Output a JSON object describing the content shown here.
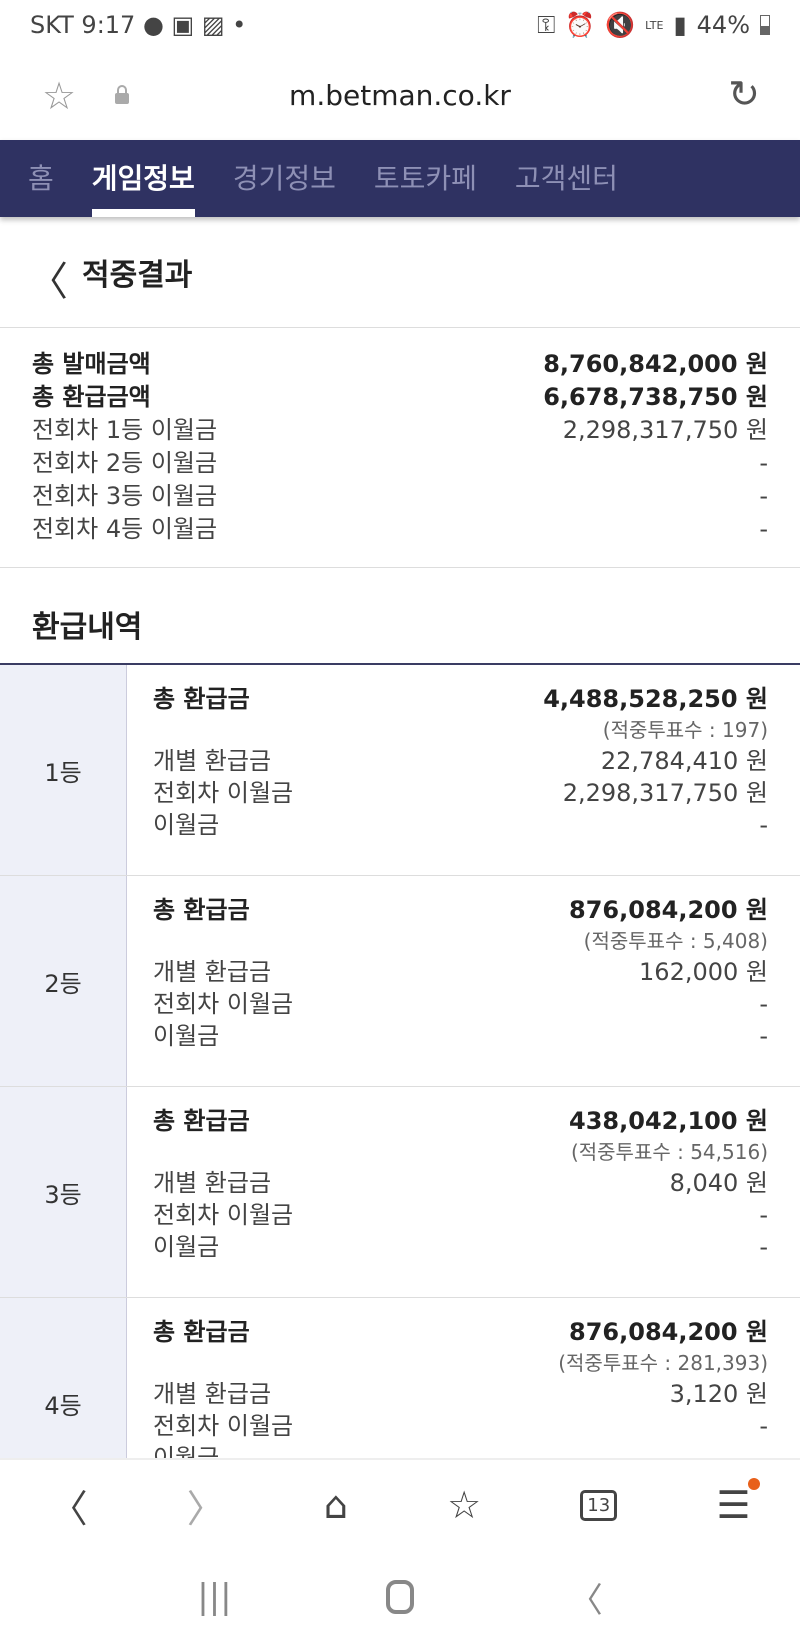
{
  "status": {
    "carrier": "SKT",
    "time": "9:17",
    "battery": "44%",
    "network": "LTE"
  },
  "browser": {
    "url": "m.betman.co.kr",
    "tabs_count": "13"
  },
  "nav": {
    "items": [
      "홈",
      "게임정보",
      "경기정보",
      "토토카페",
      "고객센터"
    ],
    "active": 1,
    "bg": "#2f3262"
  },
  "page": {
    "title": "적중결과"
  },
  "summary": [
    {
      "label": "총 발매금액",
      "value": "8,760,842,000 원",
      "bold": true
    },
    {
      "label": "총 환급금액",
      "value": "6,678,738,750 원",
      "bold": true
    },
    {
      "label": "전회차 1등 이월금",
      "value": "2,298,317,750 원"
    },
    {
      "label": "전회차 2등 이월금",
      "value": "-"
    },
    {
      "label": "전회차 3등 이월금",
      "value": "-"
    },
    {
      "label": "전회차 4등 이월금",
      "value": "-"
    }
  ],
  "refund": {
    "title": "환급내역",
    "labels": {
      "total": "총 환급금",
      "individual": "개별 환급금",
      "prev_carry": "전회차 이월금",
      "carry": "이월금"
    },
    "ranks": [
      {
        "rank": "1등",
        "total": "4,488,528,250 원",
        "winners": "(적중투표수 : 197)",
        "individual": "22,784,410 원",
        "prev_carry": "2,298,317,750 원",
        "carry": "-"
      },
      {
        "rank": "2등",
        "total": "876,084,200 원",
        "winners": "(적중투표수 : 5,408)",
        "individual": "162,000 원",
        "prev_carry": "-",
        "carry": "-"
      },
      {
        "rank": "3등",
        "total": "438,042,100 원",
        "winners": "(적중투표수 : 54,516)",
        "individual": "8,040 원",
        "prev_carry": "-",
        "carry": "-"
      },
      {
        "rank": "4등",
        "total": "876,084,200 원",
        "winners": "(적중투표수 : 281,393)",
        "individual": "3,120 원",
        "prev_carry": "-",
        "carry": "-"
      }
    ]
  }
}
